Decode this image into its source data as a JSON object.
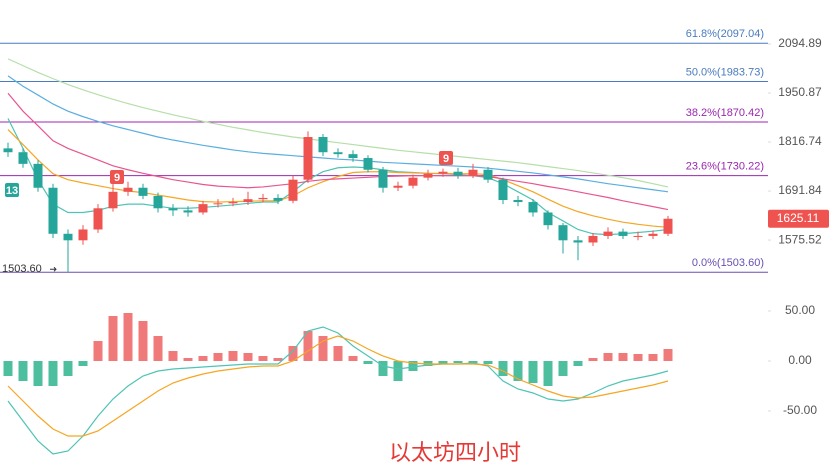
{
  "chart_data": [
    {
      "type": "candlestick",
      "log_scale": true,
      "up_color": "#ef5350",
      "down_color": "#26a69a",
      "ylim": [
        1476,
        2233
      ],
      "yticks": [
        2094.89,
        1950.87,
        1816.74,
        1691.84,
        1575.52
      ],
      "open": [
        1800,
        1790,
        1760,
        1700,
        1590,
        1575,
        1600,
        1650,
        1690,
        1700,
        1680,
        1650,
        1645,
        1640,
        1660,
        1662,
        1665,
        1672,
        1675,
        1668,
        1720,
        1830,
        1790,
        1785,
        1775,
        1745,
        1700,
        1705,
        1725,
        1735,
        1740,
        1730,
        1745,
        1720,
        1670,
        1665,
        1640,
        1610,
        1575,
        1570,
        1585,
        1595,
        1585,
        1585,
        1590
      ],
      "high": [
        1815,
        1800,
        1770,
        1710,
        1600,
        1610,
        1660,
        1712,
        1715,
        1710,
        1688,
        1660,
        1655,
        1668,
        1672,
        1675,
        1690,
        1685,
        1684,
        1730,
        1845,
        1838,
        1800,
        1795,
        1782,
        1752,
        1715,
        1733,
        1745,
        1748,
        1750,
        1760,
        1752,
        1725,
        1680,
        1672,
        1645,
        1615,
        1585,
        1592,
        1605,
        1602,
        1595,
        1598,
        1632
      ],
      "low": [
        1778,
        1750,
        1690,
        1580,
        1503.6,
        1565,
        1592,
        1642,
        1680,
        1672,
        1640,
        1632,
        1630,
        1635,
        1652,
        1655,
        1658,
        1664,
        1660,
        1662,
        1712,
        1780,
        1776,
        1765,
        1738,
        1688,
        1692,
        1698,
        1718,
        1727,
        1722,
        1724,
        1712,
        1660,
        1655,
        1630,
        1600,
        1545,
        1530,
        1562,
        1578,
        1578,
        1575,
        1578,
        1585
      ],
      "close": [
        1790,
        1760,
        1700,
        1590,
        1575,
        1600,
        1650,
        1690,
        1700,
        1680,
        1650,
        1645,
        1640,
        1660,
        1662,
        1665,
        1672,
        1675,
        1668,
        1720,
        1830,
        1790,
        1785,
        1775,
        1745,
        1700,
        1705,
        1725,
        1735,
        1740,
        1730,
        1745,
        1720,
        1670,
        1665,
        1640,
        1610,
        1575,
        1570,
        1585,
        1595,
        1585,
        1585,
        1590,
        1625.11
      ],
      "series": [
        {
          "color": "#4fc3b5",
          "values": [
            1880,
            1800,
            1720,
            1660,
            1640,
            1640,
            1645,
            1655,
            1660,
            1660,
            1655,
            1650,
            1650,
            1652,
            1655,
            1658,
            1662,
            1665,
            1665,
            1690,
            1720,
            1740,
            1750,
            1752,
            1750,
            1745,
            1740,
            1738,
            1736,
            1735,
            1733,
            1730,
            1725,
            1710,
            1690,
            1670,
            1640,
            1620,
            1600,
            1590,
            1588,
            1590,
            1593,
            1596,
            1600
          ]
        },
        {
          "color": "#f5a623",
          "values": [
            1850,
            1810,
            1770,
            1735,
            1720,
            1712,
            1705,
            1698,
            1692,
            1688,
            1682,
            1676,
            1670,
            1666,
            1665,
            1666,
            1667,
            1668,
            1668,
            1680,
            1700,
            1715,
            1728,
            1738,
            1740,
            1740,
            1738,
            1737,
            1736,
            1736,
            1735,
            1735,
            1733,
            1720,
            1705,
            1690,
            1672,
            1655,
            1642,
            1632,
            1624,
            1617,
            1612,
            1608,
            1605
          ]
        },
        {
          "color": "#e8558f",
          "values": [
            1950,
            1900,
            1860,
            1820,
            1800,
            1785,
            1770,
            1755,
            1745,
            1736,
            1728,
            1720,
            1714,
            1708,
            1704,
            1702,
            1700,
            1702,
            1706,
            1710,
            1716,
            1720,
            1722,
            1724,
            1726,
            1728,
            1729,
            1730,
            1730,
            1730,
            1730,
            1730,
            1728,
            1722,
            1716,
            1710,
            1703,
            1697,
            1690,
            1683,
            1676,
            1668,
            1661,
            1654,
            1647
          ]
        },
        {
          "color": "#5aaee0",
          "values": [
            2000,
            1970,
            1945,
            1920,
            1900,
            1885,
            1872,
            1860,
            1850,
            1840,
            1830,
            1822,
            1815,
            1808,
            1802,
            1796,
            1791,
            1787,
            1784,
            1781,
            1778,
            1775,
            1772,
            1770,
            1767,
            1764,
            1762,
            1760,
            1758,
            1756,
            1754,
            1752,
            1749,
            1745,
            1741,
            1737,
            1732,
            1727,
            1722,
            1716,
            1710,
            1705,
            1700,
            1695,
            1690
          ]
        },
        {
          "color": "#b5dfa8",
          "values": [
            2050,
            2030,
            2010,
            1992,
            1975,
            1960,
            1946,
            1933,
            1921,
            1910,
            1900,
            1890,
            1881,
            1872,
            1864,
            1856,
            1849,
            1842,
            1836,
            1830,
            1825,
            1820,
            1815,
            1810,
            1805,
            1800,
            1795,
            1791,
            1787,
            1783,
            1779,
            1775,
            1771,
            1767,
            1763,
            1758,
            1753,
            1748,
            1743,
            1737,
            1731,
            1725,
            1718,
            1710,
            1702
          ]
        }
      ],
      "fib_levels": [
        {
          "label": "61.8%(2097.04)",
          "value": 2097.04,
          "color": "#4a7bbf"
        },
        {
          "label": "50.0%(1983.73)",
          "value": 1983.73,
          "color": "#4a7bbf"
        },
        {
          "label": "38.2%(1870.42)",
          "value": 1870.42,
          "color": "#9c27b0"
        },
        {
          "label": "23.6%(1730.22)",
          "value": 1730.22,
          "color": "#9c27b0"
        },
        {
          "label": "0.0%(1503.60)",
          "value": 1503.6,
          "color": "#6a4fb0"
        }
      ],
      "annotations": [
        {
          "text": "13",
          "color": "#26a69a"
        },
        {
          "text": "9",
          "color": "#ef5350"
        },
        {
          "text": "9",
          "color": "#ef5350"
        }
      ],
      "low_price": {
        "value": 1503.6,
        "label": "1503.60"
      },
      "last_price": 1625.11
    },
    {
      "type": "macd",
      "title": "以太坊四小时",
      "ylim": [
        -99,
        71
      ],
      "yticks": [
        {
          "value": 50,
          "label": "50.00"
        },
        {
          "value": 0,
          "label": "0.00"
        },
        {
          "value": -50,
          "label": "-50.00"
        }
      ],
      "up_color": "#f07a7a",
      "down_color": "#4dbf9f",
      "histogram": [
        -15,
        -20,
        -25,
        -25,
        -15,
        -5,
        20,
        45,
        48,
        40,
        25,
        10,
        3,
        5,
        8,
        10,
        8,
        5,
        3,
        15,
        30,
        25,
        15,
        5,
        -3,
        -15,
        -20,
        -10,
        -5,
        -3,
        -2,
        -2,
        -3,
        -15,
        -20,
        -22,
        -25,
        -15,
        -5,
        3,
        8,
        8,
        7,
        7,
        12
      ],
      "series": [
        {
          "color": "#4fc3b5",
          "values": [
            -40,
            -60,
            -80,
            -93,
            -90,
            -75,
            -55,
            -38,
            -25,
            -15,
            -10,
            -8,
            -7,
            -6,
            -5,
            -4,
            -3,
            -3,
            -3,
            10,
            30,
            34,
            28,
            15,
            5,
            -5,
            -8,
            -6,
            -4,
            -3,
            -3,
            -2,
            -5,
            -20,
            -28,
            -32,
            -38,
            -40,
            -38,
            -32,
            -25,
            -20,
            -17,
            -14,
            -10
          ]
        },
        {
          "color": "#f5a623",
          "values": [
            -25,
            -40,
            -55,
            -68,
            -75,
            -75,
            -70,
            -60,
            -50,
            -40,
            -30,
            -22,
            -17,
            -13,
            -10,
            -8,
            -6,
            -5,
            -5,
            0,
            10,
            20,
            25,
            20,
            12,
            5,
            0,
            -2,
            -3,
            -3,
            -3,
            -3,
            -4,
            -10,
            -18,
            -24,
            -30,
            -35,
            -37,
            -36,
            -33,
            -30,
            -27,
            -24,
            -20
          ]
        }
      ]
    }
  ]
}
